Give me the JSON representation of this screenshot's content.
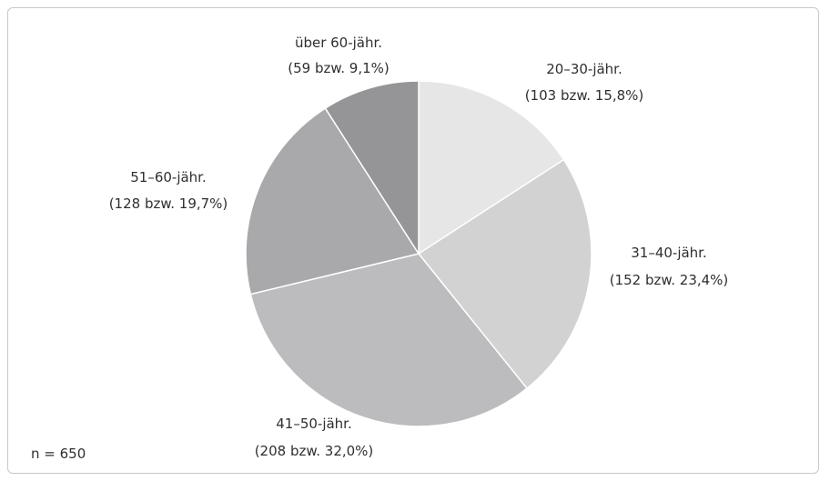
{
  "chart_data": {
    "type": "pie",
    "slices": [
      {
        "name": "20–30-jähr.",
        "value": 103,
        "label": "(103 bzw. 15,8%)",
        "color": "#e6e6e6"
      },
      {
        "name": "31–40-jähr.",
        "value": 152,
        "label": "(152 bzw. 23,4%)",
        "color": "#d2d2d3"
      },
      {
        "name": "41–50-jähr.",
        "value": 208,
        "label": "(208 bzw. 32,0%)",
        "color": "#bcbcbe"
      },
      {
        "name": "51–60-jähr.",
        "value": 128,
        "label": "(128 bzw. 19,7%)",
        "color": "#a9a9ab"
      },
      {
        "name": "über 60-jähr.",
        "value": 59,
        "label": "(59 bzw. 9,1%)",
        "color": "#959597"
      }
    ],
    "note": "n = 650",
    "start_angle": "12 o'clock",
    "direction": "clockwise"
  }
}
